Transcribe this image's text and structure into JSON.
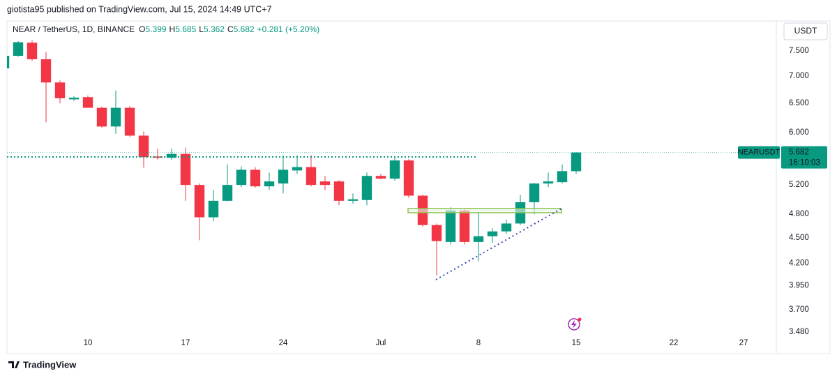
{
  "header": {
    "published": "giotista95 published on TradingView.com, Jul 15, 2024 14:49 UTC+7"
  },
  "footer": {
    "brand": "TradingView"
  },
  "chart_data": {
    "type": "candlestick",
    "legend": {
      "symbol": "NEAR / TetherUS, 1D, BINANCE",
      "ohlc": [
        {
          "key": "O",
          "value": "5.399"
        },
        {
          "key": "H",
          "value": "5.685"
        },
        {
          "key": "L",
          "value": "5.362"
        },
        {
          "key": "C",
          "value": "5.682"
        }
      ],
      "change": "+0.281 (+5.20%)"
    },
    "currency": "USDT",
    "price_label": {
      "symbol": "NEARUSDT",
      "price": "5.682",
      "countdown": "16:10:03"
    },
    "up_color": "#089981",
    "down_color": "#f23645",
    "log_scale": true,
    "grid": false,
    "x": [
      "Jun 4",
      "Jun 5",
      "Jun 6",
      "Jun 7",
      "Jun 8",
      "Jun 9",
      "Jun 10",
      "Jun 11",
      "Jun 12",
      "Jun 13",
      "Jun 14",
      "Jun 15",
      "Jun 16",
      "Jun 17",
      "Jun 18",
      "Jun 19",
      "Jun 20",
      "Jun 21",
      "Jun 22",
      "Jun 23",
      "Jun 24",
      "Jun 25",
      "Jun 26",
      "Jun 27",
      "Jun 28",
      "Jun 29",
      "Jun 30",
      "Jul 1",
      "Jul 2",
      "Jul 3",
      "Jul 4",
      "Jul 5",
      "Jul 6",
      "Jul 7",
      "Jul 8",
      "Jul 9",
      "Jul 10",
      "Jul 11",
      "Jul 12",
      "Jul 13",
      "Jul 14",
      "Jul 15"
    ],
    "open": [
      7.15,
      7.4,
      7.67,
      7.33,
      6.88,
      6.57,
      6.61,
      6.42,
      6.1,
      6.42,
      5.95,
      5.62,
      5.6,
      5.66,
      5.2,
      4.76,
      4.98,
      5.2,
      5.42,
      5.18,
      5.22,
      5.41,
      5.46,
      5.25,
      5.25,
      4.98,
      4.99,
      5.33,
      5.29,
      5.56,
      5.05,
      4.66,
      4.45,
      4.85,
      4.45,
      4.52,
      4.58,
      4.68,
      4.96,
      5.22,
      5.24,
      5.399
    ],
    "high": [
      7.45,
      7.7,
      7.72,
      7.48,
      6.92,
      6.63,
      6.64,
      6.44,
      6.73,
      6.45,
      6.02,
      5.74,
      5.74,
      5.76,
      5.22,
      5.13,
      5.5,
      5.47,
      5.46,
      5.38,
      5.64,
      5.64,
      5.64,
      5.33,
      5.27,
      5.08,
      5.38,
      5.36,
      5.6,
      5.58,
      5.06,
      4.68,
      4.89,
      4.87,
      4.83,
      4.62,
      4.73,
      5.06,
      5.23,
      5.38,
      5.5,
      5.685
    ],
    "low": [
      7.1,
      7.38,
      7.3,
      6.17,
      6.5,
      6.54,
      6.42,
      6.08,
      5.98,
      5.93,
      5.45,
      5.57,
      5.57,
      4.98,
      4.47,
      4.71,
      4.97,
      5.17,
      5.16,
      5.13,
      5.08,
      5.36,
      5.18,
      5.13,
      4.92,
      4.94,
      4.92,
      5.28,
      5.26,
      5.02,
      4.64,
      4.06,
      4.42,
      4.42,
      4.22,
      4.44,
      4.55,
      4.66,
      4.8,
      5.17,
      5.22,
      5.362
    ],
    "close": [
      7.4,
      7.68,
      7.33,
      6.88,
      6.59,
      6.6,
      6.42,
      6.1,
      6.42,
      5.95,
      5.61,
      5.6,
      5.66,
      5.2,
      4.76,
      4.98,
      5.2,
      5.42,
      5.18,
      5.25,
      5.42,
      5.46,
      5.2,
      5.2,
      4.98,
      5.0,
      5.33,
      5.29,
      5.56,
      5.05,
      4.66,
      4.46,
      4.85,
      4.45,
      4.52,
      4.58,
      4.68,
      4.96,
      5.22,
      5.25,
      5.4,
      5.682
    ],
    "xlim": [
      "Jun 4",
      "Jul 29"
    ],
    "xticks": [
      {
        "value": "Jun 10",
        "label": "10"
      },
      {
        "value": "Jun 17",
        "label": "17"
      },
      {
        "value": "Jun 24",
        "label": "24"
      },
      {
        "value": "Jul 1",
        "label": "Jul"
      },
      {
        "value": "Jul 8",
        "label": "8"
      },
      {
        "value": "Jul 15",
        "label": "15"
      },
      {
        "value": "Jul 22",
        "label": "22"
      },
      {
        "value": "Jul 27",
        "label": "27"
      }
    ],
    "ylim": [
      3.28,
      8.14
    ],
    "yticks": [
      {
        "value": 7.5,
        "label": "7.500"
      },
      {
        "value": 7.0,
        "label": "7.000"
      },
      {
        "value": 6.5,
        "label": "6.500"
      },
      {
        "value": 6.0,
        "label": "6.000"
      },
      {
        "value": 5.2,
        "label": "5.200"
      },
      {
        "value": 4.8,
        "label": "4.800"
      },
      {
        "value": 4.5,
        "label": "4.500"
      },
      {
        "value": 4.2,
        "label": "4.200"
      },
      {
        "value": 3.95,
        "label": "3.950"
      },
      {
        "value": 3.7,
        "label": "3.700"
      },
      {
        "value": 3.48,
        "label": "3.480"
      }
    ]
  }
}
